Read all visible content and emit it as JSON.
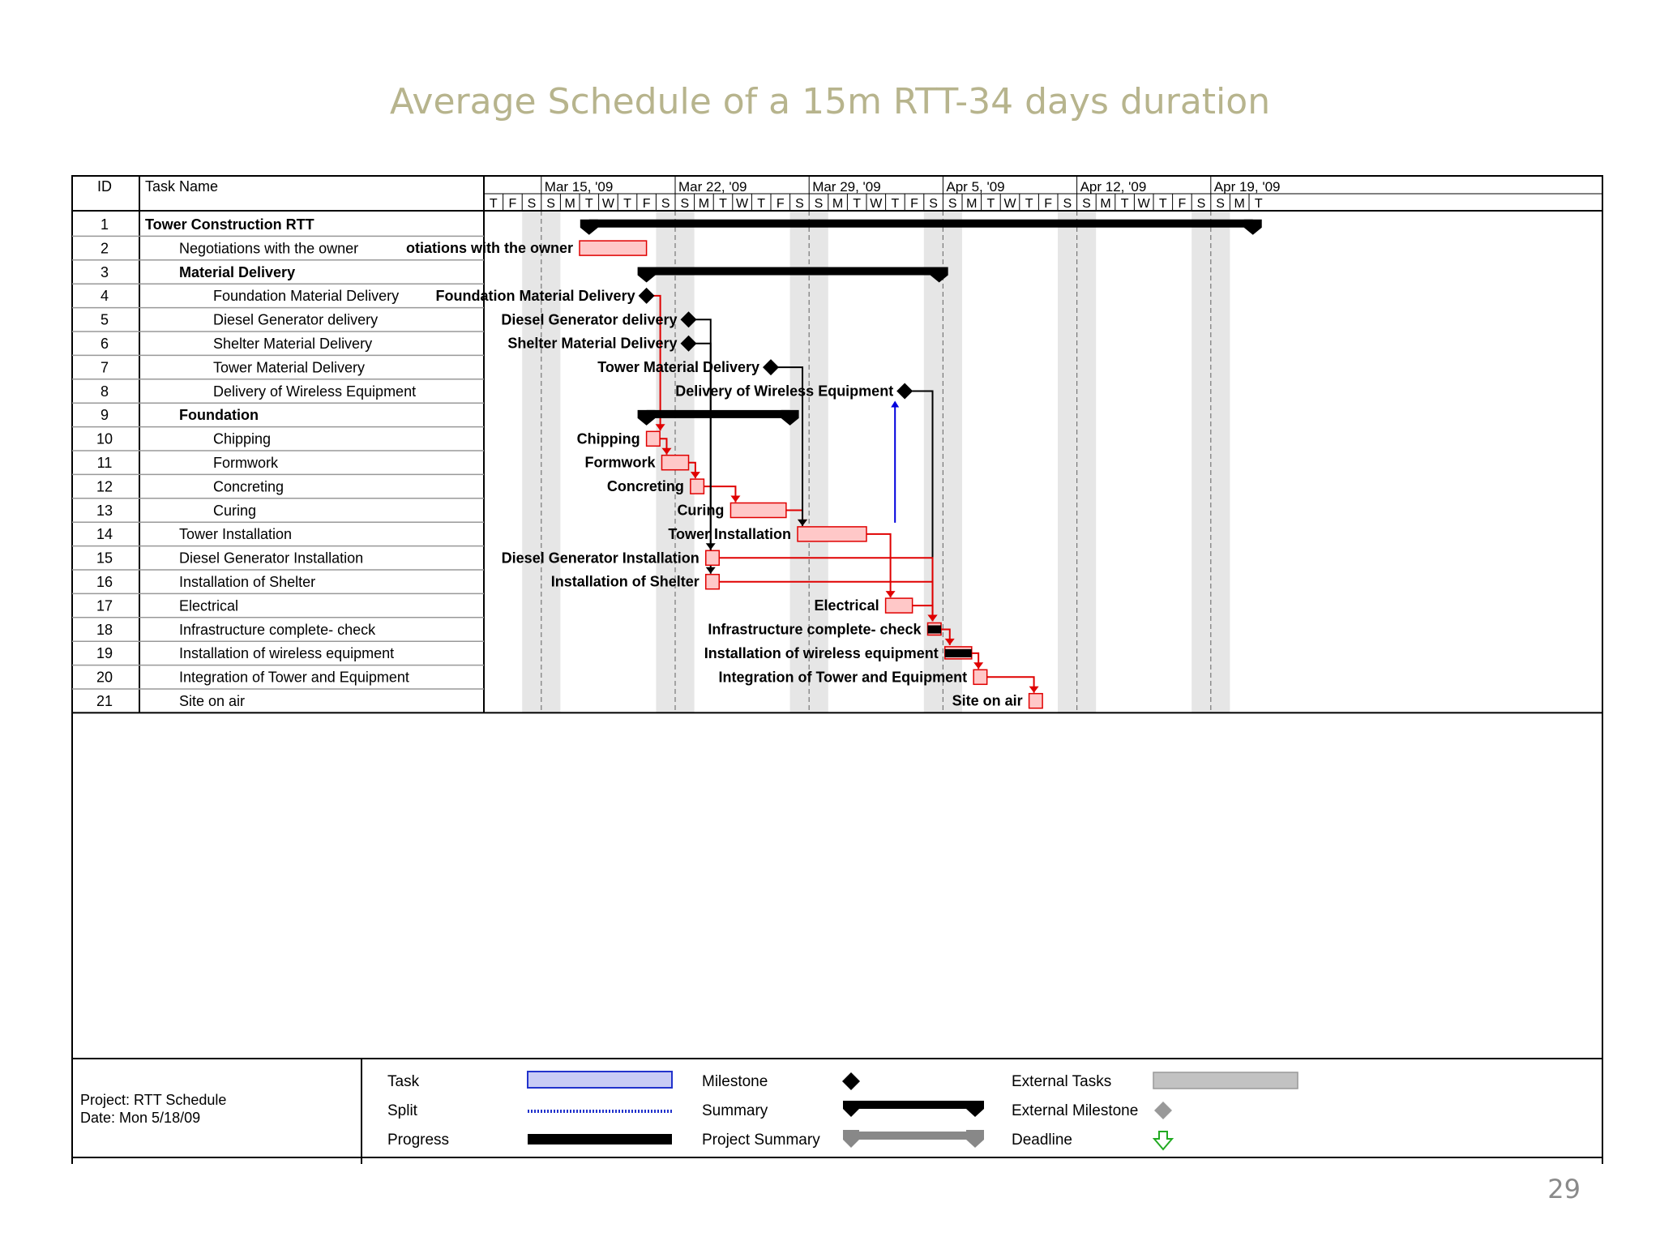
{
  "slide": {
    "title": "Average Schedule of a 15m RTT-34 days duration",
    "page_number": "29"
  },
  "gantt": {
    "col_id": "ID",
    "col_task": "Task Name",
    "weeks": [
      "Mar 15, '09",
      "Mar 22, '09",
      "Mar 29, '09",
      "Apr 5, '09",
      "Apr 12, '09",
      "Apr 19, '09"
    ],
    "days": [
      "T",
      "F",
      "S",
      "S",
      "M",
      "T",
      "W",
      "T",
      "F",
      "S",
      "S",
      "M",
      "T",
      "W",
      "T",
      "F",
      "S",
      "S",
      "M",
      "T",
      "W",
      "T",
      "F",
      "S",
      "S",
      "M",
      "T",
      "W",
      "T",
      "F",
      "S",
      "S",
      "M",
      "T",
      "W",
      "T",
      "F",
      "S",
      "S",
      "M",
      "T"
    ],
    "tasks": [
      {
        "id": "1",
        "name": "Tower Construction RTT",
        "indent": 0,
        "bold": true,
        "type": "summary",
        "start": 5.5,
        "end": 40.2,
        "chart_label": ""
      },
      {
        "id": "2",
        "name": "Negotiations with the owner",
        "indent": 1,
        "bold": false,
        "type": "task",
        "start": 5,
        "end": 8.5,
        "chart_label": "otiations with the owner"
      },
      {
        "id": "3",
        "name": "Material Delivery",
        "indent": 1,
        "bold": true,
        "type": "summary",
        "start": 8.5,
        "end": 23.8,
        "chart_label": ""
      },
      {
        "id": "4",
        "name": "Foundation Material Delivery",
        "indent": 2,
        "bold": false,
        "type": "milestone",
        "start": 8.5,
        "end": 8.5,
        "chart_label": "Foundation Material Delivery"
      },
      {
        "id": "5",
        "name": "Diesel Generator delivery",
        "indent": 2,
        "bold": false,
        "type": "milestone",
        "start": 10.7,
        "end": 10.7,
        "chart_label": "Diesel Generator delivery"
      },
      {
        "id": "6",
        "name": "Shelter Material Delivery",
        "indent": 2,
        "bold": false,
        "type": "milestone",
        "start": 10.7,
        "end": 10.7,
        "chart_label": "Shelter Material Delivery"
      },
      {
        "id": "7",
        "name": "Tower Material Delivery",
        "indent": 2,
        "bold": false,
        "type": "milestone",
        "start": 15,
        "end": 15,
        "chart_label": "Tower Material Delivery"
      },
      {
        "id": "8",
        "name": "Delivery of Wireless Equipment",
        "indent": 2,
        "bold": false,
        "type": "milestone",
        "start": 22,
        "end": 22,
        "chart_label": "Delivery of Wireless Equipment"
      },
      {
        "id": "9",
        "name": "Foundation",
        "indent": 1,
        "bold": true,
        "type": "summary",
        "start": 8.5,
        "end": 16,
        "chart_label": ""
      },
      {
        "id": "10",
        "name": "Chipping",
        "indent": 2,
        "bold": false,
        "type": "task",
        "start": 8.5,
        "end": 9.2,
        "chart_label": "Chipping"
      },
      {
        "id": "11",
        "name": "Formwork",
        "indent": 2,
        "bold": false,
        "type": "task",
        "start": 9.3,
        "end": 10.7,
        "chart_label": "Formwork"
      },
      {
        "id": "12",
        "name": "Concreting",
        "indent": 2,
        "bold": false,
        "type": "task",
        "start": 10.8,
        "end": 11.5,
        "chart_label": "Concreting"
      },
      {
        "id": "13",
        "name": "Curing",
        "indent": 2,
        "bold": false,
        "type": "task",
        "start": 12.9,
        "end": 15.8,
        "chart_label": "Curing"
      },
      {
        "id": "14",
        "name": "Tower Installation",
        "indent": 1,
        "bold": false,
        "type": "task",
        "start": 16.4,
        "end": 20,
        "chart_label": "Tower Installation"
      },
      {
        "id": "15",
        "name": "Diesel Generator Installation",
        "indent": 1,
        "bold": false,
        "type": "task",
        "start": 11.6,
        "end": 12.3,
        "chart_label": "Diesel Generator Installation"
      },
      {
        "id": "16",
        "name": "Installation of Shelter",
        "indent": 1,
        "bold": false,
        "type": "task",
        "start": 11.6,
        "end": 12.3,
        "chart_label": "Installation of Shelter"
      },
      {
        "id": "17",
        "name": "Electrical",
        "indent": 1,
        "bold": false,
        "type": "task",
        "start": 21,
        "end": 22.4,
        "chart_label": "Electrical"
      },
      {
        "id": "18",
        "name": "Infrastructure complete- check",
        "indent": 1,
        "bold": false,
        "type": "progress",
        "start": 23.2,
        "end": 23.9,
        "chart_label": "Infrastructure complete- check"
      },
      {
        "id": "19",
        "name": "Installation of wireless equipment",
        "indent": 1,
        "bold": false,
        "type": "progress",
        "start": 24.1,
        "end": 25.5,
        "chart_label": "Installation of wireless equipment"
      },
      {
        "id": "20",
        "name": "Integration of Tower and Equipment",
        "indent": 1,
        "bold": false,
        "type": "task",
        "start": 25.6,
        "end": 26.3,
        "chart_label": "Integration of Tower and Equipment"
      },
      {
        "id": "21",
        "name": "Site on air",
        "indent": 1,
        "bold": false,
        "type": "task",
        "start": 28.5,
        "end": 29.2,
        "chart_label": "Site on air"
      }
    ],
    "links": [
      {
        "from": "4",
        "to": "10",
        "color": "red"
      },
      {
        "from": "10",
        "to": "11",
        "color": "red"
      },
      {
        "from": "11",
        "to": "12",
        "color": "red"
      },
      {
        "from": "12",
        "to": "13",
        "color": "red"
      },
      {
        "from": "13",
        "to": "14",
        "color": "red"
      },
      {
        "from": "5",
        "to": "15",
        "color": "black"
      },
      {
        "from": "6",
        "to": "16",
        "color": "black"
      },
      {
        "from": "7",
        "to": "14",
        "color": "black"
      },
      {
        "from": "8",
        "to": "18",
        "color": "black"
      },
      {
        "from": "14",
        "to": "17",
        "color": "red"
      },
      {
        "from": "15",
        "to": "18",
        "color": "red"
      },
      {
        "from": "16",
        "to": "18",
        "color": "red"
      },
      {
        "from": "17",
        "to": "18",
        "color": "red"
      },
      {
        "from": "18",
        "to": "19",
        "color": "red"
      },
      {
        "from": "19",
        "to": "20",
        "color": "red"
      },
      {
        "from": "20",
        "to": "21",
        "color": "red"
      },
      {
        "from": "14",
        "to": "8",
        "color": "blue"
      }
    ]
  },
  "legend": {
    "project": "Project: RTT Schedule",
    "date": "Date: Mon 5/18/09",
    "items": [
      {
        "label": "Task",
        "symbol": "task-bar"
      },
      {
        "label": "Split",
        "symbol": "split-line"
      },
      {
        "label": "Progress",
        "symbol": "progress-bar"
      },
      {
        "label": "Milestone",
        "symbol": "milestone-diamond"
      },
      {
        "label": "Summary",
        "symbol": "summary-bar"
      },
      {
        "label": "Project Summary",
        "symbol": "project-summary-bar"
      },
      {
        "label": "External Tasks",
        "symbol": "external-task-bar"
      },
      {
        "label": "External Milestone",
        "symbol": "external-milestone-diamond"
      },
      {
        "label": "Deadline",
        "symbol": "deadline-arrow"
      }
    ]
  },
  "colors": {
    "title": "#b7b48d",
    "task_fill": "#ffc8c8",
    "task_border": "#e00000",
    "critical_link": "#e00000",
    "link": "#000000",
    "blue_link": "#0000dd",
    "weekend_shade": "#e6e6e6"
  }
}
